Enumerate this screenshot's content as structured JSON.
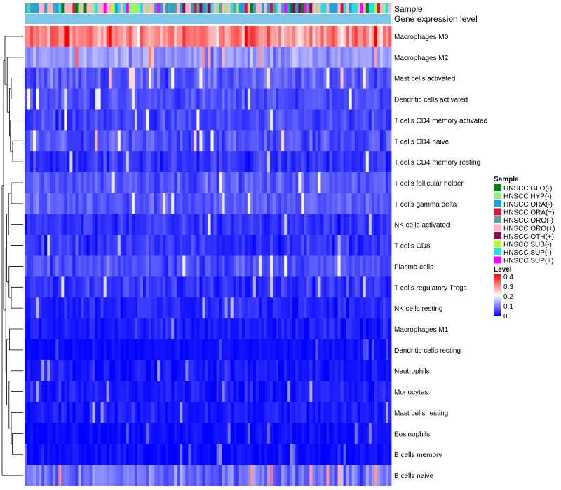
{
  "chart_data": {
    "type": "heatmap",
    "annotation_rows": {
      "sample": "Sample",
      "gene_expression": "Gene expression level"
    },
    "rows": [
      {
        "label": "Macrophages M0",
        "mean": 0.29,
        "spread": 0.11
      },
      {
        "label": "Macrophages M2",
        "mean": 0.12,
        "spread": 0.06
      },
      {
        "label": "Mast cells activated",
        "mean": 0.07,
        "spread": 0.06
      },
      {
        "label": "Dendritic cells activated",
        "mean": 0.06,
        "spread": 0.05
      },
      {
        "label": "T cells CD4 memory activated",
        "mean": 0.05,
        "spread": 0.05
      },
      {
        "label": "T cells CD4 naive",
        "mean": 0.06,
        "spread": 0.06
      },
      {
        "label": "T cells CD4 memory resting",
        "mean": 0.04,
        "spread": 0.05
      },
      {
        "label": "T cells follicular helper",
        "mean": 0.07,
        "spread": 0.05
      },
      {
        "label": "T cells gamma delta",
        "mean": 0.07,
        "spread": 0.05
      },
      {
        "label": "NK cells activated",
        "mean": 0.04,
        "spread": 0.05
      },
      {
        "label": "T cells CD8",
        "mean": 0.04,
        "spread": 0.05
      },
      {
        "label": "Plasma cells",
        "mean": 0.06,
        "spread": 0.05
      },
      {
        "label": "T cells regulatory  Tregs",
        "mean": 0.04,
        "spread": 0.05
      },
      {
        "label": "NK cells resting",
        "mean": 0.03,
        "spread": 0.04
      },
      {
        "label": "Macrophages M1",
        "mean": 0.02,
        "spread": 0.04
      },
      {
        "label": "Dendritic cells resting",
        "mean": 0.01,
        "spread": 0.02
      },
      {
        "label": "Neutrophils",
        "mean": 0.02,
        "spread": 0.04
      },
      {
        "label": "Monocytes",
        "mean": 0.02,
        "spread": 0.04
      },
      {
        "label": "Mast cells resting",
        "mean": 0.02,
        "spread": 0.04
      },
      {
        "label": "Eosinophils",
        "mean": 0.01,
        "spread": 0.03
      },
      {
        "label": "B cells memory",
        "mean": 0.01,
        "spread": 0.03
      },
      {
        "label": "B cells naive",
        "mean": 0.09,
        "spread": 0.08
      }
    ],
    "n_columns": 130,
    "legend": {
      "sample_title": "Sample",
      "samples": [
        {
          "label": "HNSCC GLO(-)",
          "color": "#00800f"
        },
        {
          "label": "HNSCC HYP(-)",
          "color": "#90ee90"
        },
        {
          "label": "HNSCC ORA(-)",
          "color": "#1ba3e0"
        },
        {
          "label": "HNSCC ORA(+)",
          "color": "#dc143c"
        },
        {
          "label": "HNSCC ORO(-)",
          "color": "#5f9ea0"
        },
        {
          "label": "HNSCC ORO(+)",
          "color": "#ffb6c1"
        },
        {
          "label": "HNSCC OTH(+)",
          "color": "#8b0a50"
        },
        {
          "label": "HNSCC SUB(-)",
          "color": "#adff2f"
        },
        {
          "label": "HNSCC SUP(-)",
          "color": "#20e0e8"
        },
        {
          "label": "HNSCC SUP(+)",
          "color": "#ff00ff"
        }
      ],
      "level_title": "Level",
      "level_ticks": [
        "0.4",
        "0.3",
        "0.2",
        "0.1",
        "0"
      ],
      "level_range": [
        0,
        0.4
      ]
    },
    "colors": {
      "low": "#0000ff",
      "mid": "#ffffff",
      "high": "#ff0000",
      "gene_expression_bar": "#7dc8e8"
    }
  }
}
